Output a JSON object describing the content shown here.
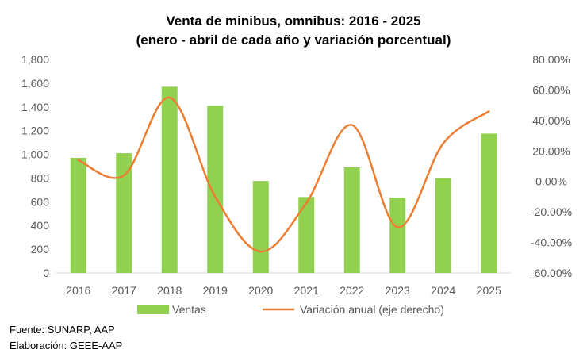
{
  "chart_data": {
    "type": "bar",
    "title": "Venta de minibus, omnibus: 2016 - 2025",
    "subtitle": "(enero - abril de cada año y variación porcentual)",
    "categories": [
      "2016",
      "2017",
      "2018",
      "2019",
      "2020",
      "2021",
      "2022",
      "2023",
      "2024",
      "2025"
    ],
    "series": [
      {
        "name": "Ventas",
        "type": "bar",
        "axis": "left",
        "color": "#92D050",
        "values": [
          970,
          1010,
          1570,
          1410,
          775,
          640,
          890,
          635,
          800,
          1175
        ]
      },
      {
        "name": "Variación anual (eje derecho)",
        "type": "line",
        "axis": "right",
        "color": "#ED7D31",
        "values": [
          14,
          4,
          55,
          -10,
          -46,
          -14,
          37,
          -30,
          25,
          46
        ]
      }
    ],
    "y_left": {
      "ylim": [
        0,
        1800
      ],
      "ticks": [
        0,
        200,
        400,
        600,
        800,
        1000,
        1200,
        1400,
        1600,
        1800
      ],
      "tick_labels": [
        "0",
        "200",
        "400",
        "600",
        "800",
        "1,000",
        "1,200",
        "1,400",
        "1,600",
        "1,800"
      ]
    },
    "y_right": {
      "ylim": [
        -60,
        80
      ],
      "ticks": [
        -60,
        -40,
        -20,
        0,
        20,
        40,
        60,
        80
      ],
      "tick_labels": [
        "-60.00%",
        "-40.00%",
        "-20.00%",
        "0.00%",
        "20.00%",
        "40.00%",
        "60.00%",
        "80.00%"
      ]
    },
    "grid": false,
    "legend": "bottom"
  },
  "source": {
    "line1": "Fuente: SUNARP, AAP",
    "line2": "Elaboración: GEEE-AAP"
  }
}
